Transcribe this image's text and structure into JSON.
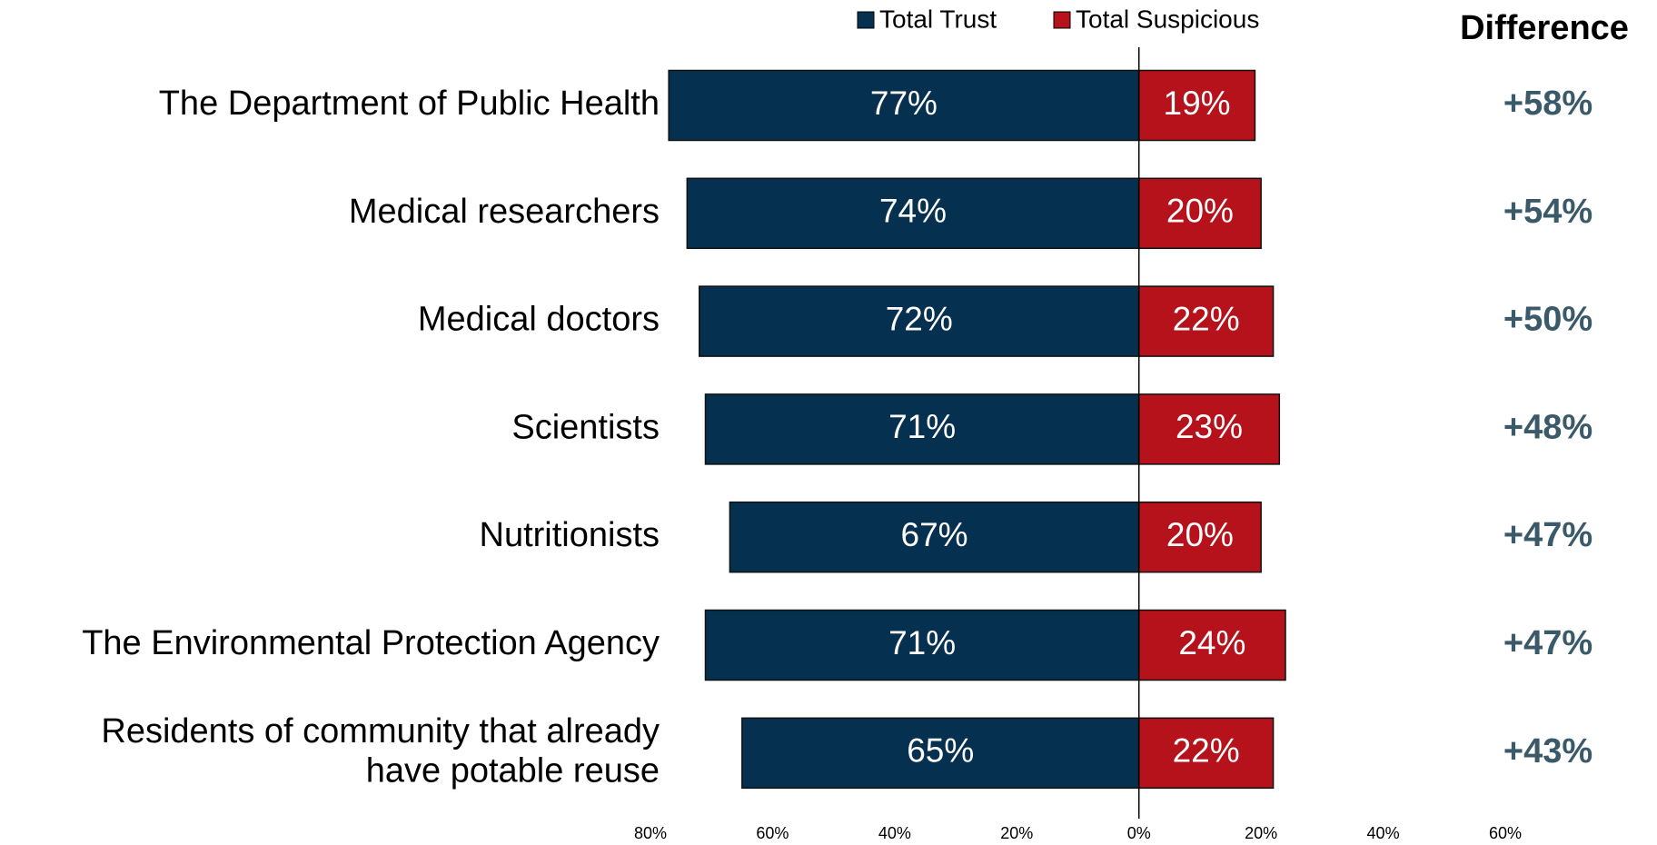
{
  "chart_data": {
    "type": "diverging-bar",
    "categories": [
      "The Department of Public Health",
      "Medical researchers",
      "Medical doctors",
      "Scientists",
      "Nutritionists",
      "The Environmental Protection Agency",
      "Residents of community that already\nhave potable reuse"
    ],
    "series": [
      {
        "name": "Total Trust",
        "color": "#06304f",
        "values": [
          -77,
          -74,
          -72,
          -71,
          -67,
          -71,
          -65
        ],
        "value_labels": [
          "77%",
          "74%",
          "72%",
          "71%",
          "67%",
          "71%",
          "65%"
        ]
      },
      {
        "name": "Total Suspicious",
        "color": "#b5121b",
        "values": [
          19,
          20,
          22,
          23,
          20,
          24,
          22
        ],
        "value_labels": [
          "19%",
          "20%",
          "22%",
          "23%",
          "20%",
          "24%",
          "22%"
        ]
      }
    ],
    "difference": {
      "title": "Difference",
      "color": "#3a5a6a",
      "values": [
        58,
        54,
        50,
        48,
        47,
        47,
        43
      ],
      "value_labels": [
        "+58%",
        "+54%",
        "+50%",
        "+48%",
        "+47%",
        "+47%",
        "+43%"
      ]
    },
    "xlim": [
      -80,
      60
    ],
    "xticks": [
      {
        "value": -80,
        "label": "80%"
      },
      {
        "value": -60,
        "label": "60%"
      },
      {
        "value": -40,
        "label": "40%"
      },
      {
        "value": -20,
        "label": "20%"
      },
      {
        "value": 0,
        "label": "0%"
      },
      {
        "value": 20,
        "label": "20%"
      },
      {
        "value": 40,
        "label": "40%"
      },
      {
        "value": 60,
        "label": "60%"
      }
    ],
    "legend": "top"
  }
}
